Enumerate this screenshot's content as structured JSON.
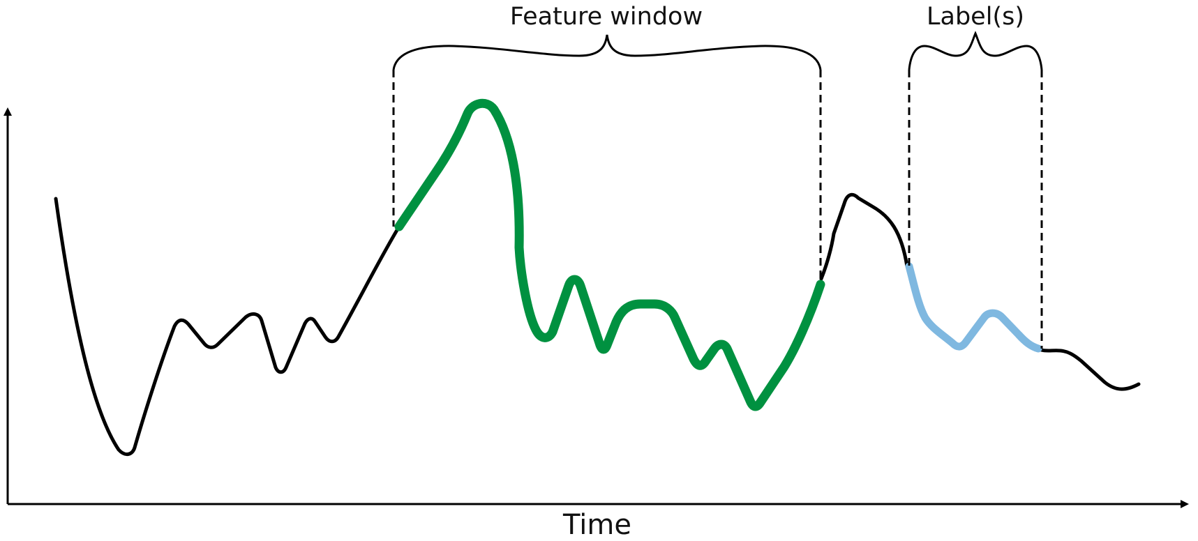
{
  "labels": {
    "feature_window": "Feature window",
    "labels": "Label(s)",
    "x_axis": "Time"
  },
  "colors": {
    "series": "#000000",
    "feature_window": "#009140",
    "label_window": "#7fb8e0",
    "axis": "#000000"
  }
}
